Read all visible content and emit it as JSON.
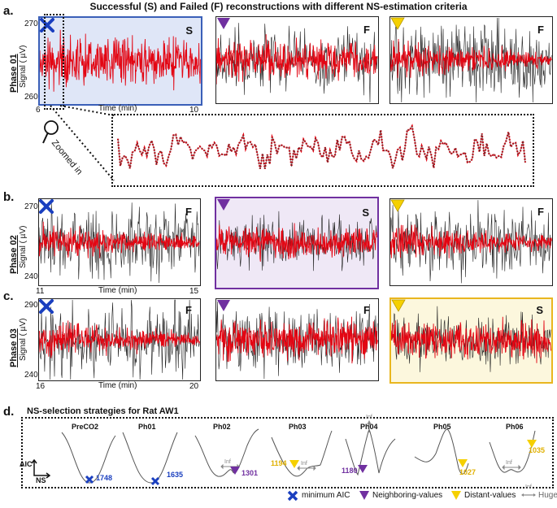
{
  "title": "Successful (S) and Failed (F) reconstructions with different NS-estimation criteria",
  "panels": {
    "a": "a.",
    "b": "b.",
    "c": "c.",
    "d": "d."
  },
  "phases": [
    "Phase 01",
    "Phase 02",
    "Phase 03"
  ],
  "signal_axis_label": "Signal ( µV)",
  "time_axis_label": "Time (min)",
  "rows": [
    {
      "yticks": [
        "270",
        "260"
      ],
      "xticks": [
        "6",
        "10"
      ],
      "results": [
        "S",
        "F",
        "F"
      ]
    },
    {
      "yticks": [
        "270",
        "240"
      ],
      "xticks": [
        "11",
        "15"
      ],
      "results": [
        "F",
        "S",
        "F"
      ]
    },
    {
      "yticks": [
        "290",
        "240"
      ],
      "xticks": [
        "16",
        "20"
      ],
      "results": [
        "F",
        "F",
        "S"
      ]
    }
  ],
  "zoom_label": "Zoomed in",
  "strategies_title": "NS-selection strategies for Rat AW1",
  "axis_aic": "AIC",
  "axis_ns": "NS",
  "inf_label": "Inf",
  "curves": [
    {
      "name": "PreCO2",
      "ns": "1748"
    },
    {
      "name": "Ph01",
      "ns": "1635"
    },
    {
      "name": "Ph02",
      "ns": "1301"
    },
    {
      "name": "Ph03",
      "ns": "1194"
    },
    {
      "name": "Ph04",
      "ns": "1180"
    },
    {
      "name": "Ph05",
      "ns": "1027"
    },
    {
      "name": "Ph06",
      "ns": "1035"
    }
  ],
  "legend": {
    "min_aic": "minimum AIC",
    "neighboring": "Neighboring-values",
    "distant": "Distant-values",
    "huge_error": "Huge Error"
  },
  "colors": {
    "signal": "#e30613",
    "blue_marker": "#1a3fbf",
    "purple_marker": "#7030a0",
    "yellow_marker": "#f5d000",
    "blue_box": "#3a5fb8",
    "purple_box": "#7030a0",
    "yellow_box": "#e9b61f"
  }
}
